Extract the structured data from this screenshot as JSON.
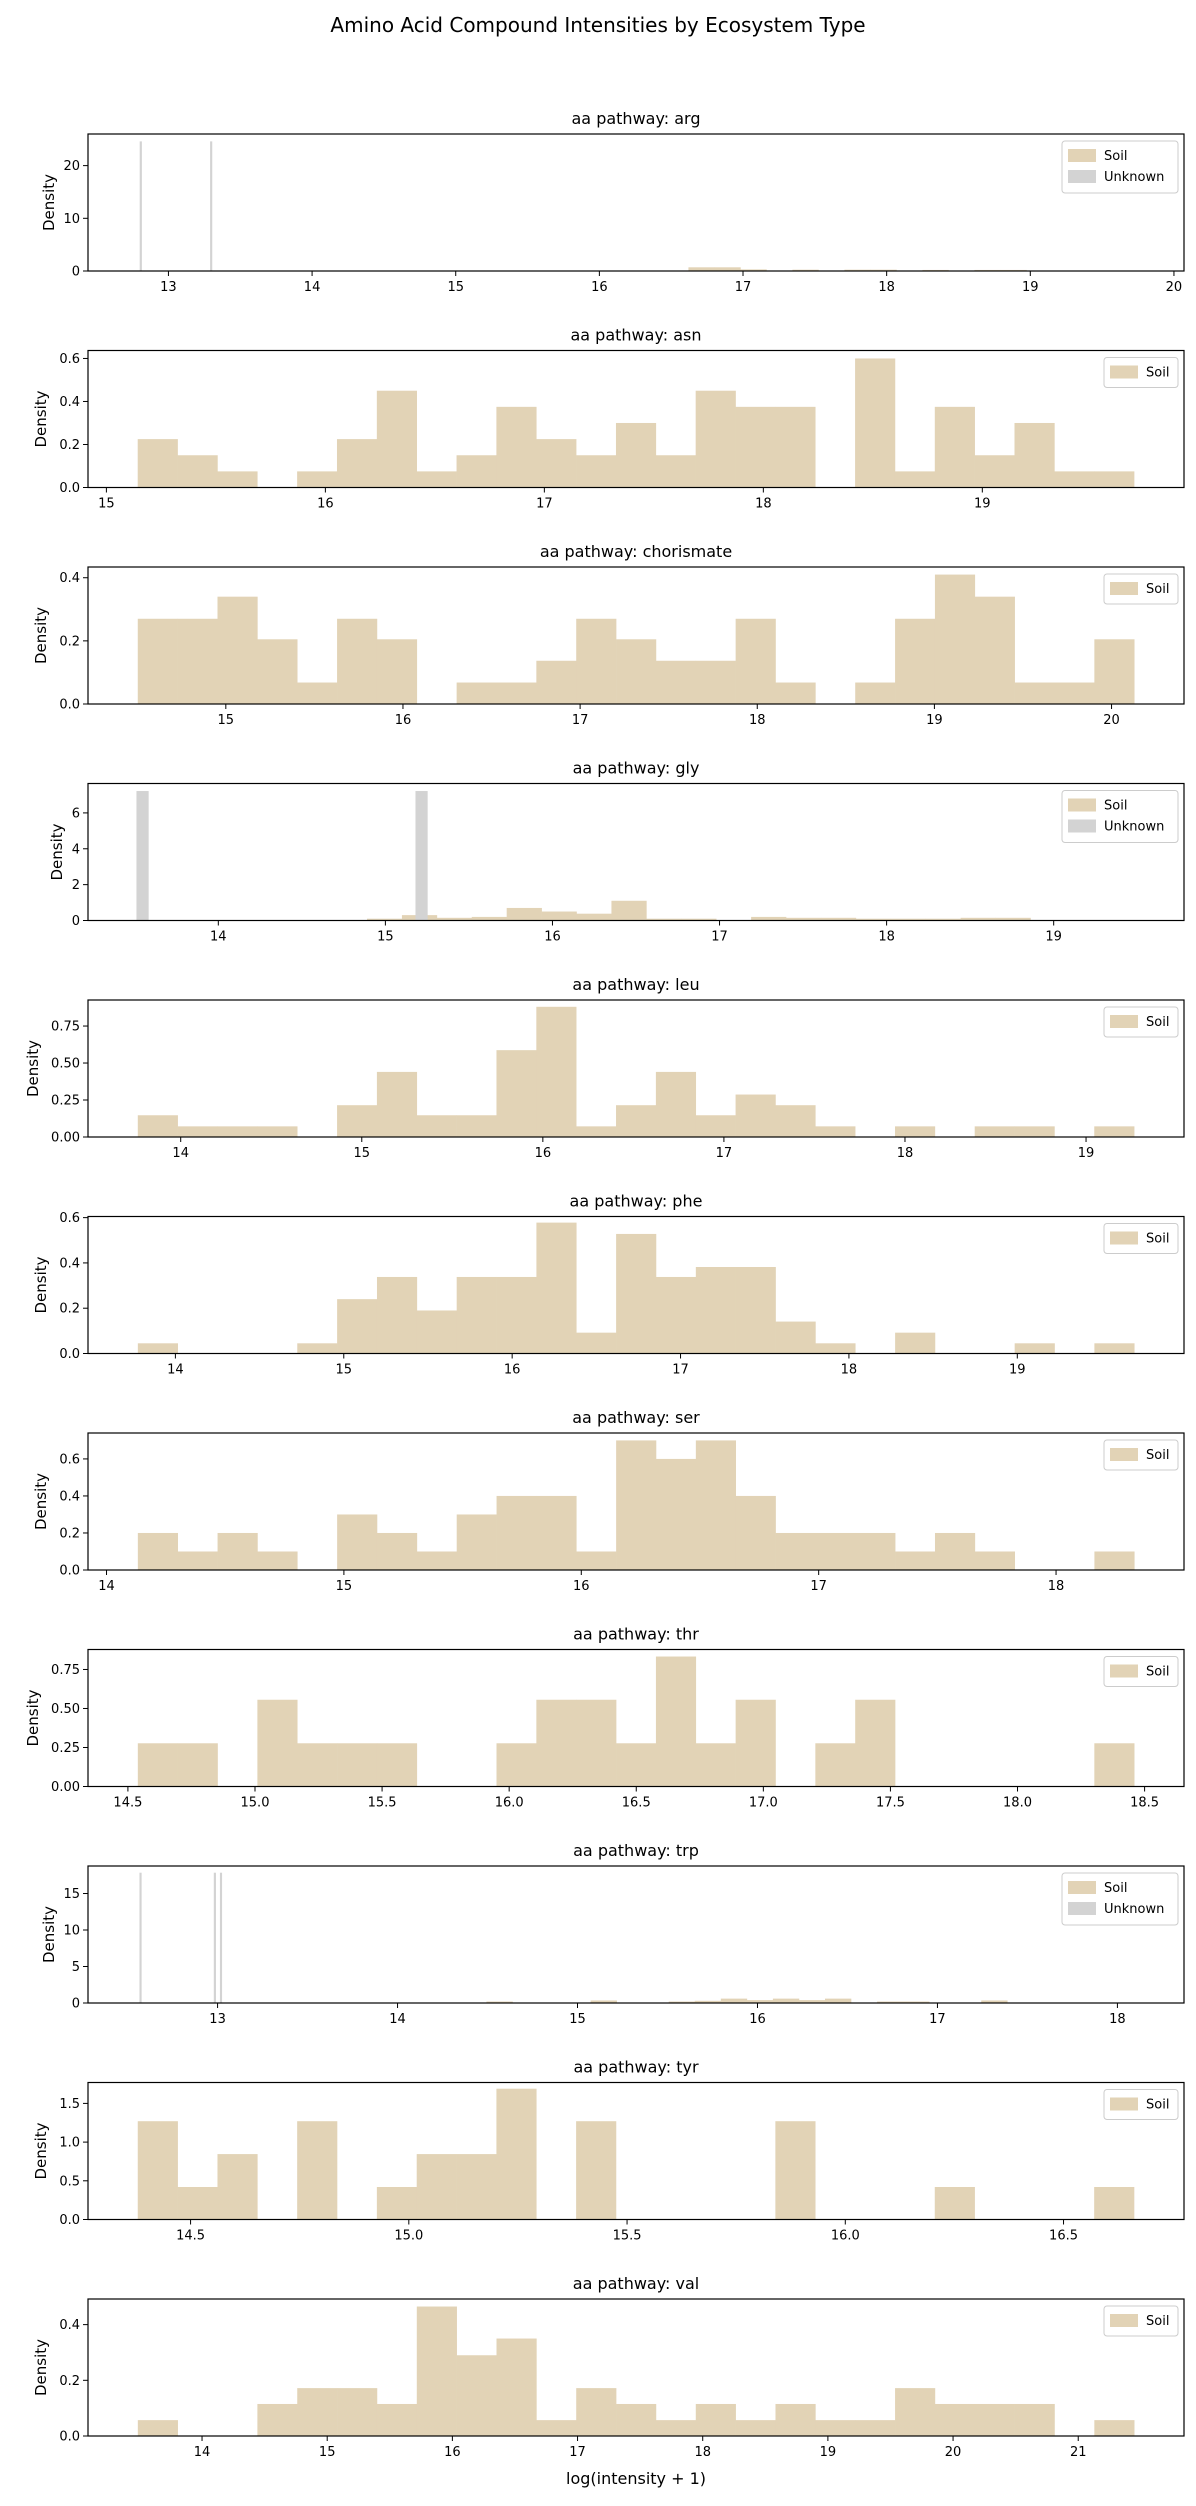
{
  "chart_data": {
    "type": "bar",
    "title": "Amino Acid Compound Intensities by Ecosystem Type",
    "xlabel": "log(intensity + 1)",
    "ylabel": "Density",
    "colors": {
      "Soil": "#e2d3b6",
      "Unknown": "#d3d3d3"
    },
    "legend_placement": "top-right",
    "grid": false,
    "panels": [
      {
        "title": "aa pathway: arg",
        "xlim": [
          12.44,
          20.07
        ],
        "ylim": [
          0,
          26.0
        ],
        "xticks": [
          13,
          14,
          15,
          16,
          17,
          18,
          19,
          20
        ],
        "xtick_labels": [
          "13",
          "14",
          "15",
          "16",
          "17",
          "18",
          "19",
          "20"
        ],
        "yticks": [
          0,
          10,
          20
        ],
        "ytick_labels": [
          "0",
          "10",
          "20"
        ],
        "legend": [
          "Soil",
          "Unknown"
        ],
        "series": [
          {
            "name": "Soil",
            "bin_start": 16.62,
            "bin_width": 0.181,
            "values": [
              0.7,
              0.7,
              0.3,
              0,
              0.25,
              0,
              0.25,
              0.25,
              0,
              0.2,
              0,
              0.2,
              0.2
            ]
          },
          {
            "name": "Unknown",
            "bars": [
              {
                "x": 12.8,
                "width": 0.015,
                "value": 24.6
              },
              {
                "x": 13.29,
                "width": 0.015,
                "value": 24.6
              }
            ]
          }
        ]
      },
      {
        "title": "aa pathway: asn",
        "xlim": [
          14.916,
          19.921
        ],
        "ylim": [
          0,
          0.637
        ],
        "xticks": [
          15,
          16,
          17,
          18,
          19
        ],
        "xtick_labels": [
          "15",
          "16",
          "17",
          "18",
          "19"
        ],
        "yticks": [
          0,
          0.2,
          0.4,
          0.6
        ],
        "ytick_labels": [
          "0.0",
          "0.2",
          "0.4",
          "0.6"
        ],
        "legend": [
          "Soil"
        ],
        "series": [
          {
            "name": "Soil",
            "bin_start": 15.143,
            "bin_width": 0.182,
            "values": [
              0.225,
              0.15,
              0.075,
              0,
              0.075,
              0.225,
              0.45,
              0.075,
              0.15,
              0.375,
              0.225,
              0.15,
              0.3,
              0.15,
              0.45,
              0.375,
              0.375,
              0,
              0.6,
              0.075,
              0.375,
              0.15,
              0.3,
              0.075,
              0.075
            ]
          }
        ]
      },
      {
        "title": "aa pathway: chorismate",
        "xlim": [
          14.222,
          20.409
        ],
        "ylim": [
          0,
          0.434
        ],
        "xticks": [
          15,
          16,
          17,
          18,
          19,
          20
        ],
        "xtick_labels": [
          "15",
          "16",
          "17",
          "18",
          "19",
          "20"
        ],
        "yticks": [
          0,
          0.2,
          0.4
        ],
        "ytick_labels": [
          "0.0",
          "0.2",
          "0.4"
        ],
        "legend": [
          "Soil"
        ],
        "series": [
          {
            "name": "Soil",
            "bin_start": 14.503,
            "bin_width": 0.225,
            "values": [
              0.27,
              0.27,
              0.34,
              0.205,
              0.068,
              0.27,
              0.205,
              0,
              0.068,
              0.068,
              0.137,
              0.27,
              0.205,
              0.137,
              0.137,
              0.27,
              0.068,
              0,
              0.068,
              0.27,
              0.41,
              0.34,
              0.068,
              0.068,
              0.205
            ]
          }
        ]
      },
      {
        "title": "aa pathway: gly",
        "xlim": [
          13.22,
          19.78
        ],
        "ylim": [
          0,
          7.64
        ],
        "xticks": [
          14,
          15,
          16,
          17,
          18,
          19
        ],
        "xtick_labels": [
          "14",
          "15",
          "16",
          "17",
          "18",
          "19"
        ],
        "yticks": [
          0,
          2,
          4,
          6
        ],
        "ytick_labels": [
          "0",
          "2",
          "4",
          "6"
        ],
        "legend": [
          "Soil",
          "Unknown"
        ],
        "series": [
          {
            "name": "Soil",
            "bin_start": 14.89,
            "bin_width": 0.209,
            "values": [
              0.1,
              0.3,
              0.15,
              0.2,
              0.7,
              0.5,
              0.38,
              1.1,
              0.1,
              0.1,
              0,
              0.2,
              0.15,
              0.15,
              0.1,
              0.1,
              0.1,
              0.15,
              0.15
            ]
          },
          {
            "name": "Unknown",
            "bars": [
              {
                "x": 13.51,
                "width": 0.073,
                "value": 7.22
              },
              {
                "x": 15.18,
                "width": 0.073,
                "value": 7.22
              }
            ]
          }
        ]
      },
      {
        "title": "aa pathway: leu",
        "xlim": [
          13.488,
          19.541
        ],
        "ylim": [
          0,
          0.926
        ],
        "xticks": [
          14,
          15,
          16,
          17,
          18,
          19
        ],
        "xtick_labels": [
          "14",
          "15",
          "16",
          "17",
          "18",
          "19"
        ],
        "yticks": [
          0,
          0.25,
          0.5,
          0.75
        ],
        "ytick_labels": [
          "0.00",
          "0.25",
          "0.50",
          "0.75"
        ],
        "legend": [
          "Soil"
        ],
        "series": [
          {
            "name": "Soil",
            "bin_start": 13.763,
            "bin_width": 0.2201,
            "values": [
              0.147,
              0.072,
              0.072,
              0.072,
              0,
              0.215,
              0.44,
              0.147,
              0.147,
              0.587,
              0.88,
              0.072,
              0.215,
              0.44,
              0.147,
              0.287,
              0.215,
              0.072,
              0,
              0.072,
              0,
              0.072,
              0.072,
              0,
              0.072
            ]
          }
        ]
      },
      {
        "title": "aa pathway: phe",
        "xlim": [
          13.481,
          19.99
        ],
        "ylim": [
          0,
          0.605
        ],
        "xticks": [
          14,
          15,
          16,
          17,
          18,
          19
        ],
        "xtick_labels": [
          "14",
          "15",
          "16",
          "17",
          "18",
          "19"
        ],
        "yticks": [
          0,
          0.2,
          0.4,
          0.6
        ],
        "ytick_labels": [
          "0.0",
          "0.2",
          "0.4",
          "0.6"
        ],
        "legend": [
          "Soil"
        ],
        "series": [
          {
            "name": "Soil",
            "bin_start": 13.777,
            "bin_width": 0.2367,
            "values": [
              0.045,
              0,
              0,
              0,
              0.045,
              0.24,
              0.338,
              0.19,
              0.338,
              0.338,
              0.578,
              0.092,
              0.528,
              0.338,
              0.382,
              0.382,
              0.141,
              0.045,
              0,
              0.092,
              0,
              0,
              0.045,
              0,
              0.045
            ]
          }
        ]
      },
      {
        "title": "aa pathway: ser",
        "xlim": [
          13.922,
          18.539
        ],
        "ylim": [
          0,
          0.74
        ],
        "xticks": [
          14,
          15,
          16,
          17,
          18
        ],
        "xtick_labels": [
          "14",
          "15",
          "16",
          "17",
          "18"
        ],
        "yticks": [
          0,
          0.2,
          0.4,
          0.6
        ],
        "ytick_labels": [
          "0.0",
          "0.2",
          "0.4",
          "0.6"
        ],
        "legend": [
          "Soil"
        ],
        "series": [
          {
            "name": "Soil",
            "bin_start": 14.132,
            "bin_width": 0.1679,
            "values": [
              0.2,
              0.1,
              0.2,
              0.1,
              0,
              0.3,
              0.2,
              0.1,
              0.3,
              0.4,
              0.4,
              0.1,
              0.7,
              0.6,
              0.7,
              0.4,
              0.2,
              0.2,
              0.2,
              0.1,
              0.2,
              0.1,
              0,
              0,
              0.1
            ]
          }
        ]
      },
      {
        "title": "aa pathway: thr",
        "xlim": [
          14.343,
          18.655
        ],
        "ylim": [
          0,
          0.878
        ],
        "xticks": [
          14.5,
          15,
          15.5,
          16,
          16.5,
          17,
          17.5,
          18,
          18.5
        ],
        "xtick_labels": [
          "14.5",
          "15.0",
          "15.5",
          "16.0",
          "16.5",
          "17.0",
          "17.5",
          "18.0",
          "18.5"
        ],
        "yticks": [
          0,
          0.25,
          0.5,
          0.75
        ],
        "ytick_labels": [
          "0.00",
          "0.25",
          "0.50",
          "0.75"
        ],
        "legend": [
          "Soil"
        ],
        "series": [
          {
            "name": "Soil",
            "bin_start": 14.539,
            "bin_width": 0.1568,
            "values": [
              0.277,
              0.277,
              0,
              0.556,
              0.277,
              0.277,
              0.277,
              0,
              0,
              0.277,
              0.556,
              0.556,
              0.277,
              0.833,
              0.277,
              0.556,
              0,
              0.277,
              0.556,
              0,
              0,
              0,
              0,
              0,
              0.277
            ]
          }
        ]
      },
      {
        "title": "aa pathway: trp",
        "xlim": [
          12.28,
          18.37
        ],
        "ylim": [
          0,
          18.77
        ],
        "xticks": [
          13,
          14,
          15,
          16,
          17,
          18
        ],
        "xtick_labels": [
          "13",
          "14",
          "15",
          "16",
          "17",
          "18"
        ],
        "yticks": [
          0,
          5,
          10,
          15
        ],
        "ytick_labels": [
          "0",
          "5",
          "10",
          "15"
        ],
        "legend": [
          "Soil",
          "Unknown"
        ],
        "series": [
          {
            "name": "Soil",
            "bin_start": 14.494,
            "bin_width": 0.1447,
            "values": [
              0.2,
              0,
              0,
              0,
              0.35,
              0,
              0,
              0.2,
              0.3,
              0.6,
              0.4,
              0.6,
              0.4,
              0.6,
              0,
              0.2,
              0.2,
              0,
              0,
              0.35
            ]
          },
          {
            "name": "Unknown",
            "bars": [
              {
                "x": 12.566,
                "width": 0.012,
                "value": 17.85
              },
              {
                "x": 12.979,
                "width": 0.012,
                "value": 17.85
              },
              {
                "x": 13.013,
                "width": 0.012,
                "value": 17.85
              }
            ]
          }
        ]
      },
      {
        "title": "aa pathway: tyr",
        "xlim": [
          14.265,
          16.776
        ],
        "ylim": [
          0,
          1.77
        ],
        "xticks": [
          14.5,
          15,
          15.5,
          16,
          16.5
        ],
        "xtick_labels": [
          "14.5",
          "15.0",
          "15.5",
          "16.0",
          "16.5"
        ],
        "yticks": [
          0,
          0.5,
          1.0,
          1.5
        ],
        "ytick_labels": [
          "0.0",
          "0.5",
          "1.0",
          "1.5"
        ],
        "legend": [
          "Soil"
        ],
        "series": [
          {
            "name": "Soil",
            "bin_start": 14.379,
            "bin_width": 0.0913,
            "values": [
              1.27,
              0.42,
              0.845,
              0,
              1.27,
              0,
              0.42,
              0.845,
              0.845,
              1.69,
              0,
              1.27,
              0,
              0,
              0,
              0,
              1.27,
              0,
              0,
              0,
              0.42,
              0,
              0,
              0,
              0.42
            ]
          }
        ]
      },
      {
        "title": "aa pathway: val",
        "xlim": [
          13.089,
          21.845
        ],
        "ylim": [
          0,
          0.492
        ],
        "xticks": [
          14,
          15,
          16,
          17,
          18,
          19,
          20,
          21
        ],
        "xtick_labels": [
          "14",
          "15",
          "16",
          "17",
          "18",
          "19",
          "20",
          "21"
        ],
        "yticks": [
          0,
          0.2,
          0.4
        ],
        "ytick_labels": [
          "0.0",
          "0.2",
          "0.4"
        ],
        "legend": [
          "Soil"
        ],
        "series": [
          {
            "name": "Soil",
            "bin_start": 13.487,
            "bin_width": 0.3184,
            "values": [
              0.057,
              0,
              0,
              0.115,
              0.172,
              0.172,
              0.115,
              0.465,
              0.29,
              0.35,
              0.057,
              0.172,
              0.115,
              0.057,
              0.115,
              0.057,
              0.115,
              0.057,
              0.057,
              0.172,
              0.115,
              0.115,
              0.115,
              0,
              0.057
            ]
          }
        ]
      }
    ]
  }
}
